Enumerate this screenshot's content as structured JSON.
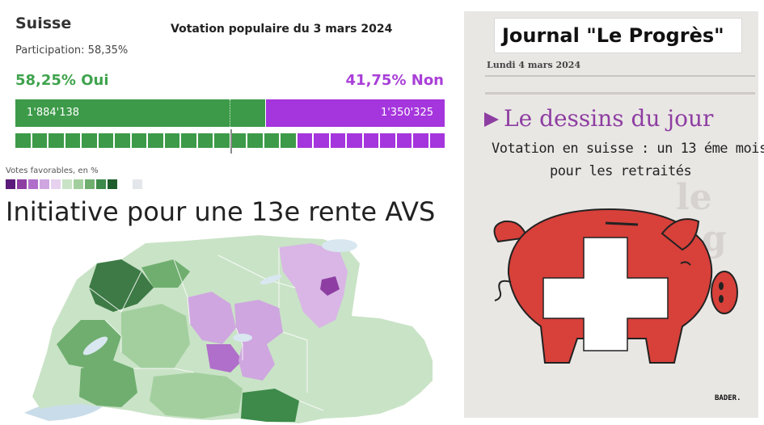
{
  "results": {
    "country": "Suisse",
    "title": "Votation populaire du 3 mars 2024",
    "participation": "Participation: 58,35%",
    "yes_label": "58,25% Oui",
    "no_label": "41,75% Non",
    "yes_share": 0.5825,
    "no_share": 0.4175,
    "yes_votes": "1'884'138",
    "no_votes": "1'350'325",
    "colors": {
      "yes": "#3c9a48",
      "no": "#a535dc",
      "yes_text": "#3fa34d",
      "no_text": "#a940d8"
    },
    "cantons_yes": 17,
    "cantons_no": 9
  },
  "legend": {
    "title": "Votes favorables, en %",
    "colors": [
      "#5c1a7a",
      "#8e3ea2",
      "#b06fca",
      "#cfa6e0",
      "#e6d2ee",
      "#c9e3c6",
      "#a3cf9f",
      "#6fae6f",
      "#3d8a4a",
      "#1f5e2c"
    ],
    "no_data_color": "#e3e6ea"
  },
  "initiative_title": "Initiative pour une 13e rente AVS",
  "newspaper": {
    "title": "Journal \"Le Progrès\"",
    "date": "Lundi 4 mars 2024",
    "section": "Le dessins du jour",
    "caption_line1": "Votation en suisse : un 13 éme mois",
    "caption_line2": "pour les retraités",
    "ghost_text": "le fig",
    "signature": "BADER."
  }
}
